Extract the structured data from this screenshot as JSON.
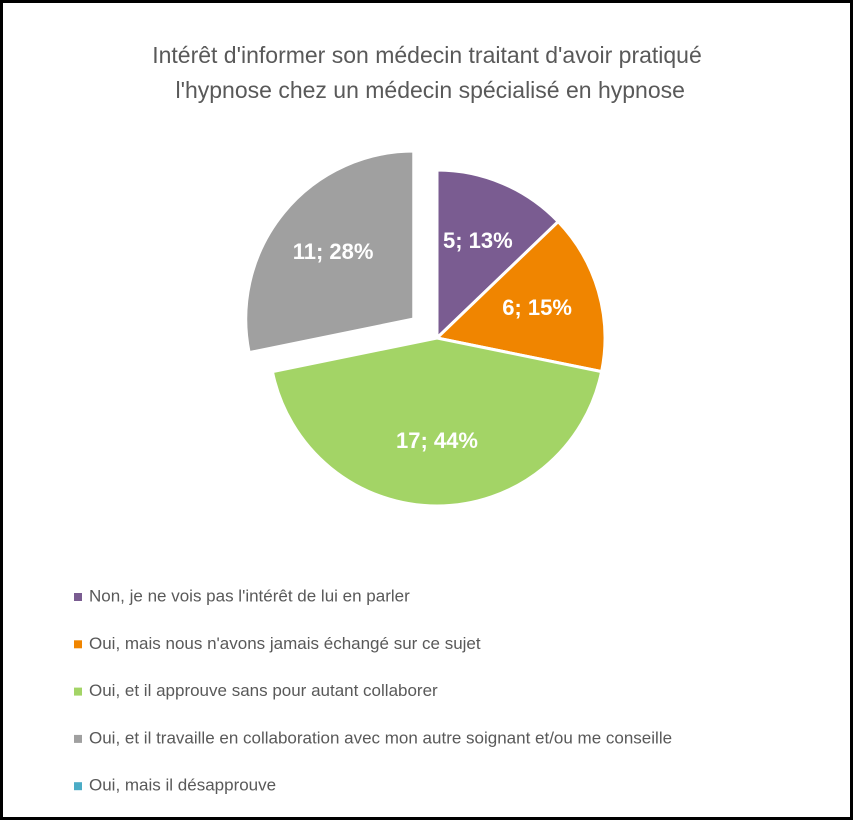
{
  "chart_data": {
    "type": "pie",
    "title": "Intérêt d'informer son médecin traitant d'avoir pratiqué l'hypnose chez un médecin spécialisé en hypnose",
    "categories": [
      "Non, je ne vois pas l'intérêt de lui en parler",
      "Oui, mais nous n'avons jamais échangé sur ce sujet",
      "Oui, et il approuve sans pour autant collaborer",
      "Oui, et il travaille en collaboration avec mon autre soignant et/ou me conseille",
      "Oui, mais il désapprouve"
    ],
    "values": [
      5,
      6,
      17,
      11,
      0
    ],
    "value_labels": [
      "5; 13%",
      "6; 15%",
      "17; 44%",
      "11; 28%",
      null
    ],
    "colors": [
      "#7a5c91",
      "#f08500",
      "#a3d466",
      "#a0a0a0",
      "#4bacc6"
    ],
    "legend": "bottom"
  }
}
